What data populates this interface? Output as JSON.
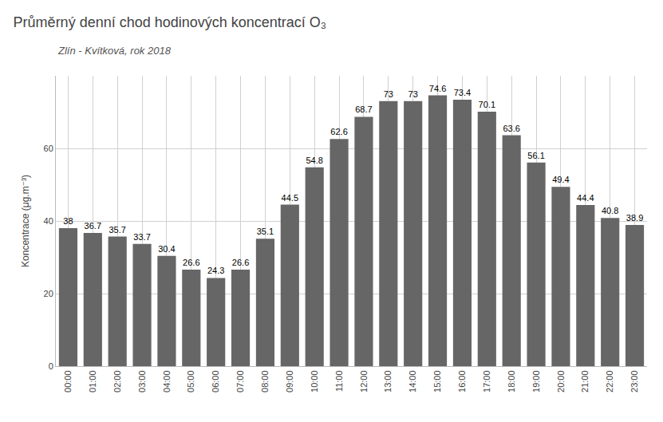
{
  "chart_data": {
    "type": "bar",
    "title": "Průměrný denní chod hodinových koncentrací O₃",
    "subtitle": "Zlín - Kvítková, rok 2018",
    "ylabel": "Koncentrace (μg.m⁻³)",
    "categories": [
      "00:00",
      "01:00",
      "02:00",
      "03:00",
      "04:00",
      "05:00",
      "06:00",
      "07:00",
      "08:00",
      "09:00",
      "10:00",
      "11:00",
      "12:00",
      "13:00",
      "14:00",
      "15:00",
      "16:00",
      "17:00",
      "18:00",
      "19:00",
      "20:00",
      "21:00",
      "22:00",
      "23:00"
    ],
    "values": [
      38.0,
      36.7,
      35.7,
      33.7,
      30.4,
      26.6,
      24.3,
      26.6,
      35.1,
      44.5,
      54.8,
      62.6,
      68.7,
      73.0,
      73.0,
      74.6,
      73.4,
      70.1,
      63.6,
      56.1,
      49.4,
      44.4,
      40.8,
      38.9
    ],
    "color": "#666666",
    "ylim": [
      0,
      80
    ],
    "yticks": [
      0,
      20,
      40,
      60
    ],
    "grid": true,
    "data_labels": true
  }
}
